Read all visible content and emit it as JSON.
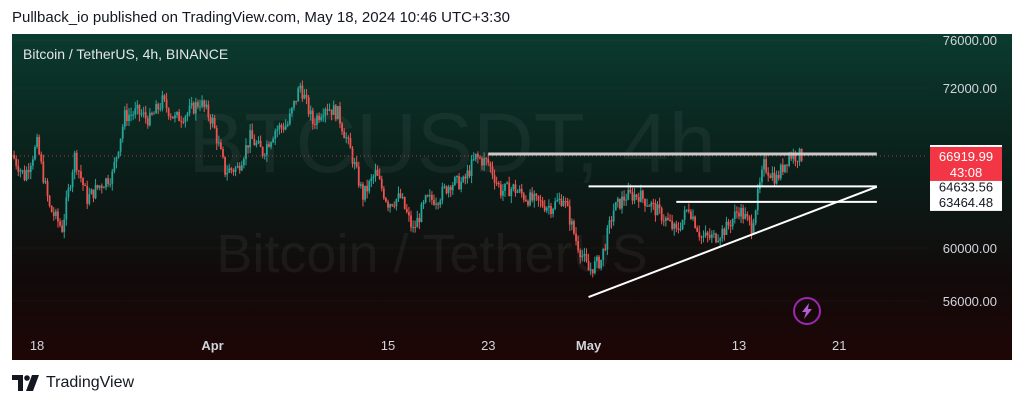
{
  "header": {
    "publish_line": "Pullback_io published on TradingView.com, May 18, 2024 10:46 UTC+3:30"
  },
  "chart_panel": {
    "symbol_title": "Bitcoin / TetherUS, 4h, BINANCE",
    "watermark_big": "BTCUSDT, 4h",
    "watermark_small": "Bitcoin / TetherUS"
  },
  "footer": {
    "brand": "TradingView"
  },
  "chart_data": {
    "type": "candlestick",
    "title": "Bitcoin / TetherUS, 4h, BINANCE",
    "symbol": "BTCUSDT",
    "interval": "4h",
    "exchange": "BINANCE",
    "price_ticks": [
      {
        "value": 76000,
        "label": "76000.00"
      },
      {
        "value": 72000,
        "label": "72000.00"
      },
      {
        "value": 60000,
        "label": "60000.00"
      },
      {
        "value": 56000,
        "label": "56000.00"
      }
    ],
    "time_ticks": [
      {
        "date": "2024-03-18",
        "label": "18"
      },
      {
        "date": "2024-04-01",
        "label": "Apr"
      },
      {
        "date": "2024-04-15",
        "label": "15"
      },
      {
        "date": "2024-04-23",
        "label": "23"
      },
      {
        "date": "2024-05-01",
        "label": "May"
      },
      {
        "date": "2024-05-13",
        "label": "13"
      },
      {
        "date": "2024-05-21",
        "label": "21"
      }
    ],
    "xlim": [
      "2024-03-16",
      "2024-05-28"
    ],
    "ylim": [
      54800,
      77000
    ],
    "current_price": {
      "value": 66919.99,
      "label": "66919.99",
      "countdown": "43:08",
      "color": "#f23645"
    },
    "horizontal_levels": [
      {
        "value": 67066.49,
        "label": "67066.49",
        "start": "2024-04-23",
        "end": "2024-05-24",
        "color": "#c8c8c8"
      },
      {
        "value": 64633.56,
        "label": "64633.56",
        "start": "2024-05-01",
        "end": "2024-05-24",
        "color": "#ffffff"
      },
      {
        "value": 63464.48,
        "label": "63464.48",
        "start": "2024-05-08",
        "end": "2024-05-24",
        "color": "#ffffff"
      }
    ],
    "trendline": {
      "start": {
        "date": "2024-05-01",
        "value": 56300
      },
      "end": {
        "date": "2024-05-24",
        "value": 64600
      },
      "color": "#ffffff"
    },
    "colors": {
      "up": "#26a69a",
      "down": "#ef5350"
    },
    "price_path": [
      [
        "2024-03-16",
        67000
      ],
      [
        "2024-03-17",
        65400
      ],
      [
        "2024-03-18",
        67800
      ],
      [
        "2024-03-19",
        63000
      ],
      [
        "2024-03-20",
        61500
      ],
      [
        "2024-03-21",
        66900
      ],
      [
        "2024-03-22",
        63700
      ],
      [
        "2024-03-23",
        64700
      ],
      [
        "2024-03-24",
        65500
      ],
      [
        "2024-03-25",
        69900
      ],
      [
        "2024-03-26",
        70200
      ],
      [
        "2024-03-27",
        69600
      ],
      [
        "2024-03-28",
        71000
      ],
      [
        "2024-03-29",
        69700
      ],
      [
        "2024-03-30",
        70100
      ],
      [
        "2024-03-31",
        71000
      ],
      [
        "2024-04-01",
        69500
      ],
      [
        "2024-04-02",
        65800
      ],
      [
        "2024-04-03",
        66000
      ],
      [
        "2024-04-04",
        68300
      ],
      [
        "2024-04-05",
        67200
      ],
      [
        "2024-04-06",
        68900
      ],
      [
        "2024-04-07",
        69300
      ],
      [
        "2024-04-08",
        72200
      ],
      [
        "2024-04-09",
        69400
      ],
      [
        "2024-04-10",
        70700
      ],
      [
        "2024-04-11",
        70100
      ],
      [
        "2024-04-12",
        67300
      ],
      [
        "2024-04-13",
        63900
      ],
      [
        "2024-04-14",
        65600
      ],
      [
        "2024-04-15",
        63400
      ],
      [
        "2024-04-16",
        63800
      ],
      [
        "2024-04-17",
        61300
      ],
      [
        "2024-04-18",
        63500
      ],
      [
        "2024-04-19",
        63800
      ],
      [
        "2024-04-20",
        64900
      ],
      [
        "2024-04-21",
        64900
      ],
      [
        "2024-04-22",
        66800
      ],
      [
        "2024-04-23",
        66400
      ],
      [
        "2024-04-24",
        64300
      ],
      [
        "2024-04-25",
        64500
      ],
      [
        "2024-04-26",
        63800
      ],
      [
        "2024-04-27",
        63400
      ],
      [
        "2024-04-28",
        63100
      ],
      [
        "2024-04-29",
        63800
      ],
      [
        "2024-04-30",
        60600
      ],
      [
        "2024-05-01",
        58300
      ],
      [
        "2024-05-02",
        59100
      ],
      [
        "2024-05-03",
        62900
      ],
      [
        "2024-05-04",
        63900
      ],
      [
        "2024-05-05",
        64000
      ],
      [
        "2024-05-06",
        63200
      ],
      [
        "2024-05-07",
        62300
      ],
      [
        "2024-05-08",
        61200
      ],
      [
        "2024-05-09",
        63100
      ],
      [
        "2024-05-10",
        60800
      ],
      [
        "2024-05-11",
        60800
      ],
      [
        "2024-05-12",
        61500
      ],
      [
        "2024-05-13",
        62900
      ],
      [
        "2024-05-14",
        61600
      ],
      [
        "2024-05-15",
        66200
      ],
      [
        "2024-05-16",
        65200
      ],
      [
        "2024-05-17",
        67000
      ],
      [
        "2024-05-18",
        66920
      ]
    ]
  }
}
